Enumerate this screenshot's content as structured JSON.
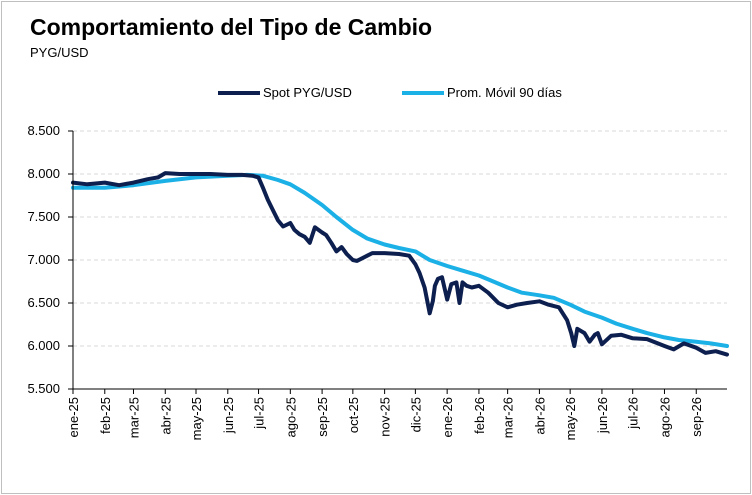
{
  "title": "Comportamiento  del Tipo de Cambio",
  "subtitle": "PYG/USD",
  "colors": {
    "spot": "#0d1f4e",
    "avg": "#1bb0e6",
    "grid": "#d9d9d9",
    "axis": "#000000"
  },
  "chart_data": {
    "type": "line",
    "title": "Comportamiento  del Tipo de Cambio",
    "subtitle": "PYG/USD",
    "ylim": [
      5500,
      8500
    ],
    "yticks": [
      5500,
      6000,
      6500,
      7000,
      7500,
      8000,
      8500
    ],
    "ytick_labels": [
      "5.500",
      "6.000",
      "6.500",
      "7.000",
      "7.500",
      "8.000",
      "8.500"
    ],
    "x_range": [
      "2025-01-01",
      "2026-10-01"
    ],
    "xticks": [
      "2025-01-01",
      "2025-02-01",
      "2025-03-01",
      "2025-04-01",
      "2025-05-01",
      "2025-06-01",
      "2025-07-01",
      "2025-08-01",
      "2025-09-01",
      "2025-10-01",
      "2025-11-01",
      "2025-12-01",
      "2026-01-01",
      "2026-02-01",
      "2026-03-01",
      "2026-04-01",
      "2026-05-01",
      "2026-06-01",
      "2026-07-01",
      "2026-08-01",
      "2026-09-01"
    ],
    "xtick_labels": [
      "ene-25",
      "feb-25",
      "mar-25",
      "abr-25",
      "may-25",
      "jun-25",
      "jul-25",
      "ago-25",
      "sep-25",
      "oct-25",
      "nov-25",
      "dic-25",
      "ene-26",
      "feb-26",
      "mar-26",
      "abr-26",
      "may-26",
      "jun-26",
      "jul-26",
      "ago-26",
      "sep-26"
    ],
    "grid": "horizontal",
    "legend_position": "top-center",
    "series": [
      {
        "name": "Spot PYG/USD",
        "x": [
          "2025-01-01",
          "2025-01-15",
          "2025-02-01",
          "2025-02-15",
          "2025-03-01",
          "2025-03-15",
          "2025-03-25",
          "2025-04-01",
          "2025-04-15",
          "2025-05-01",
          "2025-05-15",
          "2025-06-01",
          "2025-06-15",
          "2025-06-25",
          "2025-07-01",
          "2025-07-05",
          "2025-07-10",
          "2025-07-15",
          "2025-07-20",
          "2025-07-25",
          "2025-08-01",
          "2025-08-05",
          "2025-08-10",
          "2025-08-15",
          "2025-08-20",
          "2025-08-25",
          "2025-09-01",
          "2025-09-05",
          "2025-09-10",
          "2025-09-15",
          "2025-09-20",
          "2025-09-25",
          "2025-10-01",
          "2025-10-05",
          "2025-10-10",
          "2025-10-15",
          "2025-10-20",
          "2025-11-01",
          "2025-11-15",
          "2025-11-25",
          "2025-12-01",
          "2025-12-05",
          "2025-12-10",
          "2025-12-15",
          "2025-12-18",
          "2025-12-20",
          "2025-12-23",
          "2025-12-27",
          "2026-01-01",
          "2026-01-05",
          "2026-01-10",
          "2026-01-13",
          "2026-01-16",
          "2026-01-20",
          "2026-01-25",
          "2026-02-01",
          "2026-02-10",
          "2026-02-20",
          "2026-03-01",
          "2026-03-10",
          "2026-03-20",
          "2026-04-01",
          "2026-04-10",
          "2026-04-20",
          "2026-04-28",
          "2026-05-02",
          "2026-05-05",
          "2026-05-08",
          "2026-05-15",
          "2026-05-20",
          "2026-05-25",
          "2026-05-28",
          "2026-06-01",
          "2026-06-10",
          "2026-06-20",
          "2026-07-01",
          "2026-07-15",
          "2026-08-01",
          "2026-08-10",
          "2026-08-20",
          "2026-09-01",
          "2026-09-10",
          "2026-09-20",
          "2026-10-01"
        ],
        "values": [
          7900,
          7880,
          7900,
          7870,
          7900,
          7940,
          7960,
          8010,
          8000,
          8000,
          8000,
          7990,
          7990,
          7980,
          7960,
          7850,
          7700,
          7580,
          7460,
          7390,
          7430,
          7350,
          7300,
          7270,
          7200,
          7380,
          7320,
          7290,
          7200,
          7100,
          7150,
          7070,
          7000,
          6990,
          7020,
          7050,
          7080,
          7080,
          7070,
          7050,
          6950,
          6850,
          6680,
          6380,
          6520,
          6700,
          6780,
          6800,
          6540,
          6720,
          6740,
          6500,
          6740,
          6700,
          6680,
          6700,
          6620,
          6500,
          6450,
          6480,
          6500,
          6520,
          6480,
          6450,
          6300,
          6150,
          6000,
          6200,
          6150,
          6050,
          6130,
          6150,
          6020,
          6120,
          6130,
          6090,
          6080,
          6000,
          5960,
          6030,
          5980,
          5920,
          5940,
          5900
        ]
      },
      {
        "name": "Prom. Móvil 90 días",
        "x": [
          "2025-01-01",
          "2025-02-01",
          "2025-03-01",
          "2025-04-01",
          "2025-05-01",
          "2025-06-01",
          "2025-06-20",
          "2025-07-05",
          "2025-07-20",
          "2025-08-01",
          "2025-08-15",
          "2025-09-01",
          "2025-09-15",
          "2025-10-01",
          "2025-10-15",
          "2025-11-01",
          "2025-11-15",
          "2025-12-01",
          "2025-12-15",
          "2026-01-01",
          "2026-01-15",
          "2026-02-01",
          "2026-02-15",
          "2026-03-01",
          "2026-03-15",
          "2026-04-01",
          "2026-04-15",
          "2026-05-01",
          "2026-05-15",
          "2026-06-01",
          "2026-06-15",
          "2026-07-01",
          "2026-07-15",
          "2026-08-01",
          "2026-08-15",
          "2026-09-01",
          "2026-09-15",
          "2026-10-01"
        ],
        "values": [
          7840,
          7840,
          7870,
          7920,
          7960,
          7980,
          7990,
          7980,
          7930,
          7880,
          7780,
          7640,
          7500,
          7350,
          7250,
          7180,
          7140,
          7100,
          7000,
          6930,
          6880,
          6820,
          6750,
          6680,
          6620,
          6590,
          6560,
          6480,
          6400,
          6330,
          6260,
          6200,
          6150,
          6100,
          6070,
          6050,
          6030,
          6000
        ]
      }
    ]
  }
}
